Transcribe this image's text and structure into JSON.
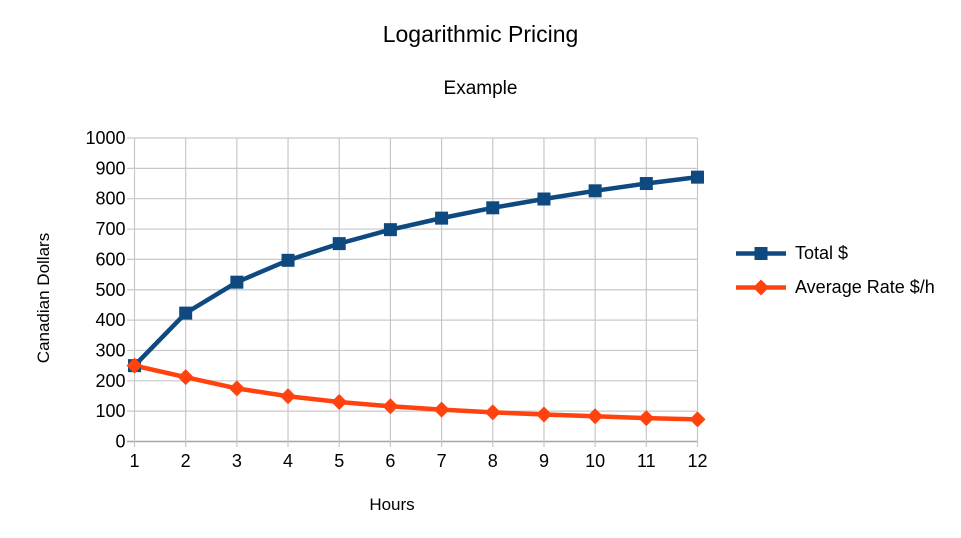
{
  "chart_data": {
    "type": "line",
    "title": "Logarithmic Pricing",
    "subtitle": "Example",
    "xlabel": "Hours",
    "ylabel": "Canadian Dollars",
    "x": [
      1,
      2,
      3,
      4,
      5,
      6,
      7,
      8,
      9,
      10,
      11,
      12
    ],
    "ylim": [
      0,
      1000
    ],
    "ytick_step": 100,
    "grid": true,
    "legend_position": "right",
    "grid_color": "#C8C8C8",
    "axis_color": "#A6A6A6",
    "series": [
      {
        "name": "Total $",
        "color": "#0E4A7F",
        "marker": "square",
        "values": [
          250,
          423,
          525,
          597,
          652,
          698,
          736,
          770,
          799,
          826,
          850,
          871
        ]
      },
      {
        "name": "Average Rate $/h",
        "color": "#FF420E",
        "marker": "diamond",
        "values": [
          250,
          212,
          175,
          149,
          130,
          116,
          105,
          96,
          89,
          83,
          77,
          73
        ]
      }
    ]
  }
}
